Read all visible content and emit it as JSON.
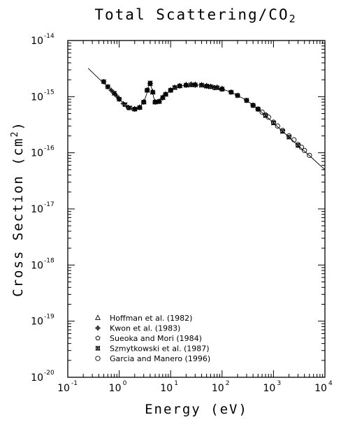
{
  "chart_data": {
    "type": "scatter",
    "title": "Total Scattering/CO",
    "title_sub": "2",
    "xlabel": "Energy (eV)",
    "ylabel": "Cross Section (cm",
    "ylabel_sup": "2",
    "ylabel_close": ")",
    "x_scale": "log",
    "y_scale": "log",
    "xlim": [
      0.1,
      10000
    ],
    "ylim": [
      1e-20,
      1e-14
    ],
    "x_ticks": [
      {
        "value": 0.1,
        "base": "10",
        "exp": "-1"
      },
      {
        "value": 1,
        "base": "10",
        "exp": "0"
      },
      {
        "value": 10,
        "base": "10",
        "exp": "1"
      },
      {
        "value": 100,
        "base": "10",
        "exp": "2"
      },
      {
        "value": 1000,
        "base": "10",
        "exp": "3"
      },
      {
        "value": 10000,
        "base": "10",
        "exp": "4"
      }
    ],
    "y_ticks": [
      {
        "value": 1e-20,
        "base": "10",
        "exp": "-20"
      },
      {
        "value": 1e-19,
        "base": "10",
        "exp": "-19"
      },
      {
        "value": 1e-18,
        "base": "10",
        "exp": "-18"
      },
      {
        "value": 1e-17,
        "base": "10",
        "exp": "-17"
      },
      {
        "value": 1e-16,
        "base": "10",
        "exp": "-16"
      },
      {
        "value": 1e-15,
        "base": "10",
        "exp": "-15"
      },
      {
        "value": 1e-14,
        "base": "10",
        "exp": "-14"
      }
    ],
    "grid": false,
    "legend_position": "bottom-left",
    "fit_curve": {
      "x": [
        0.25,
        0.4,
        0.6,
        0.8,
        1.0,
        1.3,
        1.6,
        2.0,
        2.5,
        3.0,
        3.4,
        3.8,
        4.0,
        4.3,
        4.7,
        5.2,
        6.0,
        7.0,
        8.5,
        10,
        15,
        20,
        30,
        40,
        60,
        80,
        100,
        150,
        200,
        300,
        500,
        700,
        1000,
        1500,
        2000,
        3000,
        5000,
        7000,
        10000
      ],
      "y": [
        3.2e-15,
        2.1e-15,
        1.5e-15,
        1.15e-15,
        9e-16,
        7.2e-16,
        6.3e-16,
        6e-16,
        6.4e-16,
        8e-16,
        1.1e-15,
        1.6e-15,
        1.75e-15,
        1.4e-15,
        9.5e-16,
        7.8e-16,
        8.2e-16,
        9.6e-16,
        1.15e-15,
        1.3e-15,
        1.55e-15,
        1.6e-15,
        1.62e-15,
        1.6e-15,
        1.52e-15,
        1.44e-15,
        1.37e-15,
        1.2e-15,
        1.05e-15,
        8.6e-16,
        6e-16,
        4.6e-16,
        3.4e-16,
        2.4e-16,
        1.9e-16,
        1.35e-16,
        8.9e-17,
        6.7e-17,
        5e-17
      ]
    },
    "series": [
      {
        "name": "Hoffman et al. (1982)",
        "marker": "triangle",
        "x": [
          2.0,
          2.5,
          3.0,
          3.5,
          4.0,
          4.5,
          5.0,
          6.0,
          7.0,
          8.0,
          10,
          12,
          15,
          20,
          25,
          30,
          40,
          50,
          60,
          80,
          100
        ],
        "y": [
          6e-16,
          6.4e-16,
          8e-16,
          1.3e-15,
          1.7e-15,
          1.2e-15,
          8e-16,
          8.2e-16,
          9.6e-16,
          1.1e-15,
          1.3e-15,
          1.45e-15,
          1.55e-15,
          1.62e-15,
          1.65e-15,
          1.64e-15,
          1.6e-15,
          1.55e-15,
          1.5e-15,
          1.45e-15,
          1.38e-15
        ]
      },
      {
        "name": "Kwon et al. (1983)",
        "marker": "cross-circle",
        "x": [
          0.5,
          0.6,
          0.7,
          0.8,
          0.9,
          1.0,
          1.2,
          1.5,
          2.0,
          2.5,
          3.0,
          3.5,
          4.0,
          4.5,
          5.0,
          6.0,
          7.0,
          8.0,
          10,
          15,
          20,
          30,
          50,
          70,
          100,
          150,
          200,
          300,
          400,
          500
        ],
        "y": [
          1.85e-15,
          1.5e-15,
          1.3e-15,
          1.15e-15,
          1.02e-15,
          9e-16,
          7.5e-16,
          6.4e-16,
          6e-16,
          6.4e-16,
          8e-16,
          1.3e-15,
          1.72e-15,
          1.2e-15,
          8e-16,
          8.2e-16,
          9.5e-16,
          1.1e-15,
          1.3e-15,
          1.55e-15,
          1.6e-15,
          1.6e-15,
          1.54e-15,
          1.45e-15,
          1.37e-15,
          1.2e-15,
          1.05e-15,
          8.6e-16,
          7e-16,
          6e-16
        ]
      },
      {
        "name": "Sueoka and Mori (1984)",
        "marker": "pentagon",
        "x": [
          1.0,
          1.5,
          2.0,
          2.5,
          3.0,
          3.5,
          4.0,
          5.0,
          6.0,
          8.0,
          10,
          15,
          20,
          30,
          40,
          50,
          70,
          100,
          150,
          200,
          300,
          400
        ],
        "y": [
          9e-16,
          6.4e-16,
          6e-16,
          6.4e-16,
          8e-16,
          1.3e-15,
          1.7e-15,
          8e-16,
          8.2e-16,
          1.1e-15,
          1.3e-15,
          1.55e-15,
          1.6e-15,
          1.62e-15,
          1.6e-15,
          1.54e-15,
          1.45e-15,
          1.35e-15,
          1.2e-15,
          1.05e-15,
          8.5e-16,
          7e-16
        ]
      },
      {
        "name": "Szmytkowski et al. (1987)",
        "marker": "asterisk-box",
        "x": [
          0.5,
          0.6,
          0.8,
          1.0,
          1.3,
          1.6,
          2.0,
          2.5,
          3.0,
          3.5,
          4.0,
          4.5,
          5.0,
          6.0,
          7.0,
          8.0,
          10,
          12,
          15,
          20,
          25,
          30,
          40,
          50,
          60,
          80,
          100,
          150,
          200,
          300,
          400,
          500,
          700,
          1000,
          1500,
          2000,
          3000
        ],
        "y": [
          1.85e-15,
          1.5e-15,
          1.15e-15,
          9e-16,
          7.2e-16,
          6.3e-16,
          6e-16,
          6.4e-16,
          8e-16,
          1.3e-15,
          1.75e-15,
          1.2e-15,
          8e-16,
          8.2e-16,
          9.6e-16,
          1.1e-15,
          1.3e-15,
          1.45e-15,
          1.55e-15,
          1.6e-15,
          1.62e-15,
          1.62e-15,
          1.6e-15,
          1.54e-15,
          1.5e-15,
          1.44e-15,
          1.37e-15,
          1.2e-15,
          1.05e-15,
          8.6e-16,
          7e-16,
          6e-16,
          4.6e-16,
          3.4e-16,
          2.4e-16,
          1.9e-16,
          1.35e-16
        ]
      },
      {
        "name": "Garcia and Manero (1996)",
        "marker": "circle",
        "x": [
          400,
          500,
          600,
          700,
          800,
          1000,
          1200,
          1500,
          2000,
          2500,
          3000,
          3500,
          4000,
          5000
        ],
        "y": [
          7e-16,
          6e-16,
          5.3e-16,
          4.7e-16,
          4.3e-16,
          3.5e-16,
          3e-16,
          2.5e-16,
          2e-16,
          1.7e-16,
          1.4e-16,
          1.25e-16,
          1.1e-16,
          9e-17
        ]
      }
    ]
  }
}
